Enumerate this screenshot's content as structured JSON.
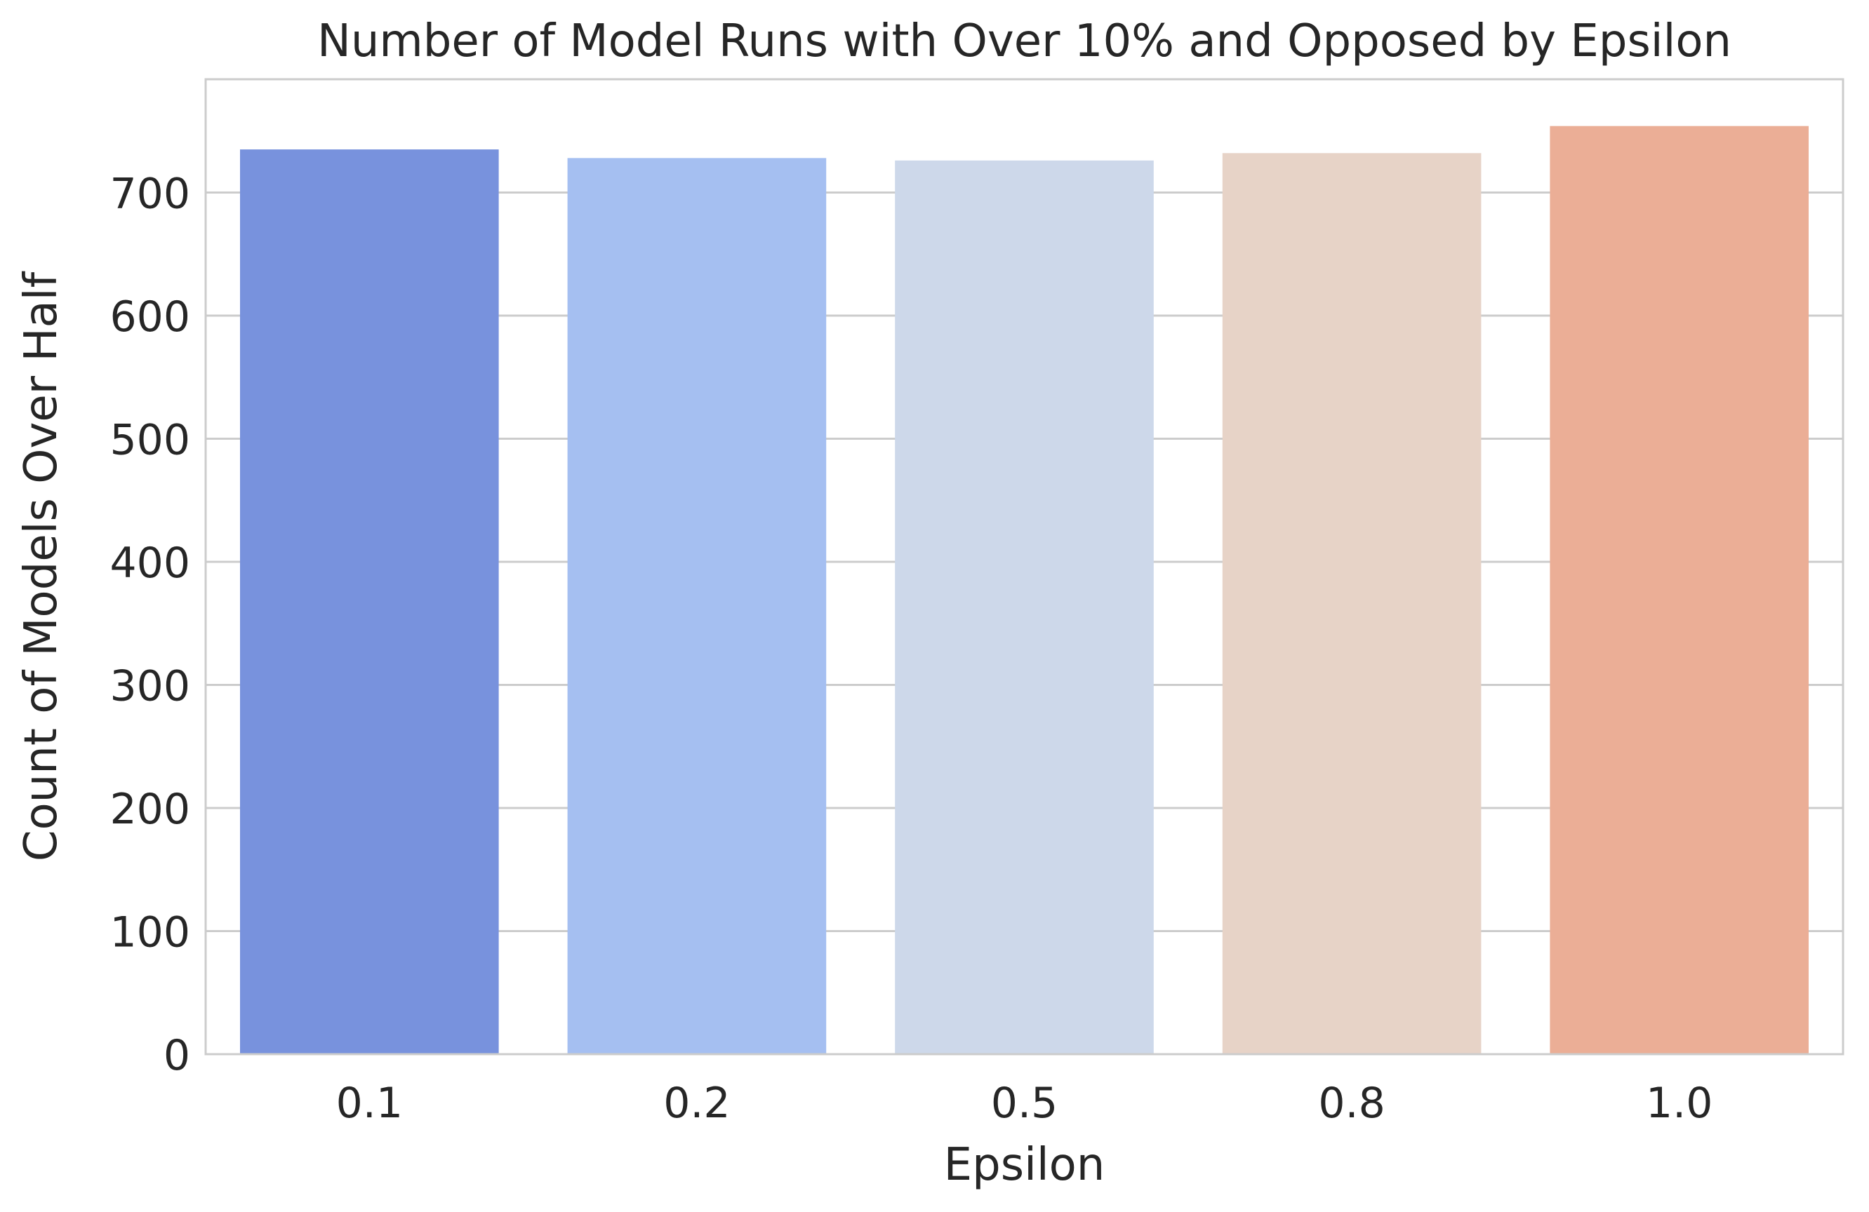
{
  "chart_data": {
    "type": "bar",
    "title": "Number of Model Runs with Over 10% and Opposed by Epsilon",
    "xlabel": "Epsilon",
    "ylabel": "Count of Models Over Half",
    "categories": [
      "0.1",
      "0.2",
      "0.5",
      "0.8",
      "1.0"
    ],
    "values": [
      735,
      728,
      726,
      732,
      754
    ],
    "colors": [
      "#7892DD",
      "#A5BFF1",
      "#CDD8EA",
      "#E7D3C7",
      "#EBAE96"
    ],
    "ylim": [
      0,
      792
    ],
    "yticks": [
      0,
      100,
      200,
      300,
      400,
      500,
      600,
      700
    ],
    "grid": "horizontal",
    "style": {
      "text_color": "#262626",
      "grid_color": "#CCCCCC",
      "spine_color": "#CCCCCC",
      "background": "#FFFFFF"
    }
  }
}
